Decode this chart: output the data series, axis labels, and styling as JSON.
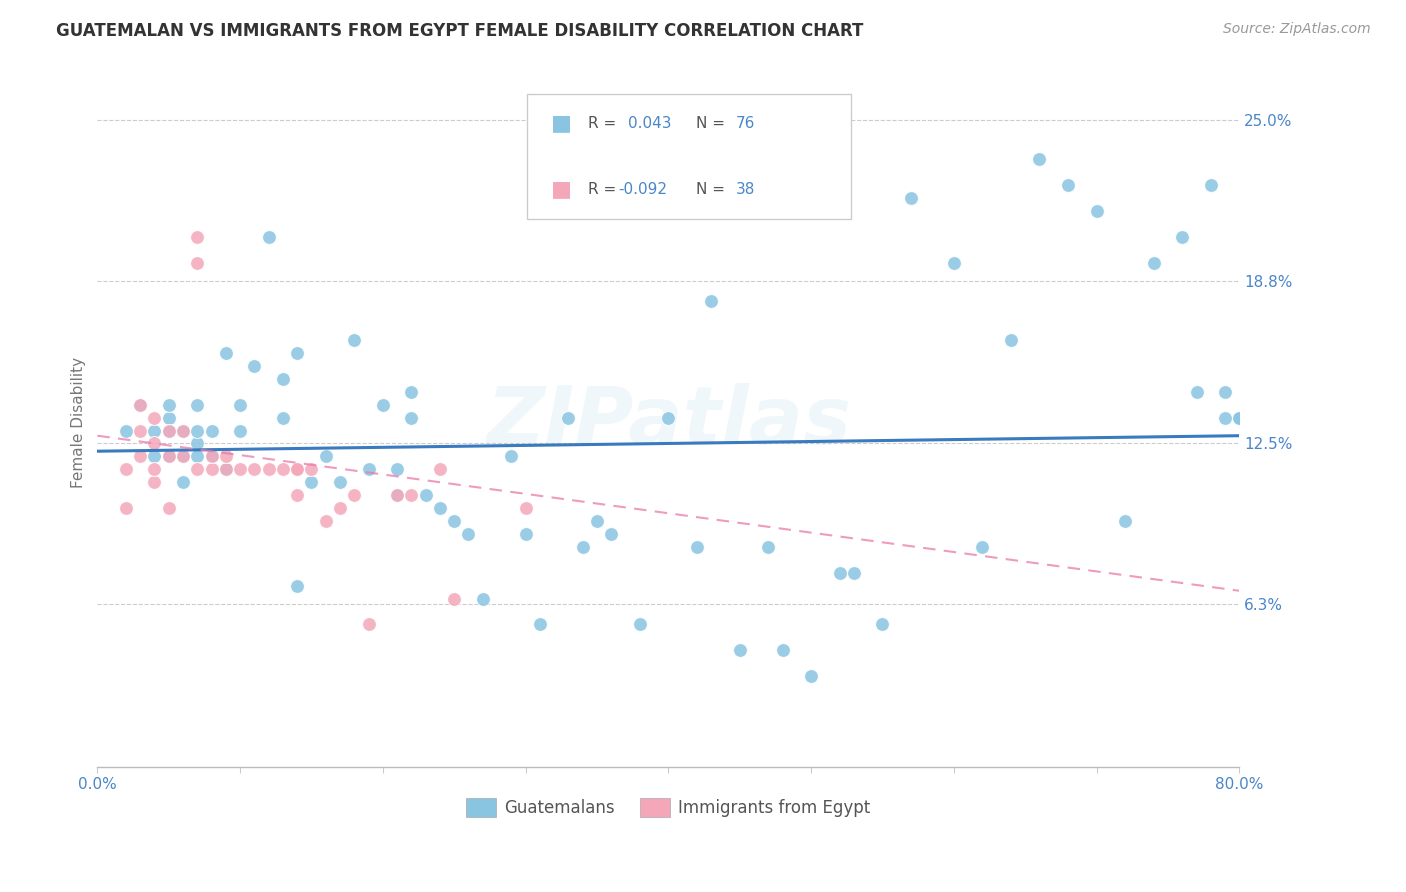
{
  "title": "GUATEMALAN VS IMMIGRANTS FROM EGYPT FEMALE DISABILITY CORRELATION CHART",
  "source": "Source: ZipAtlas.com",
  "ylabel": "Female Disability",
  "xlim": [
    0.0,
    0.8
  ],
  "ylim": [
    0.0,
    0.2666
  ],
  "xticks": [
    0.0,
    0.1,
    0.2,
    0.3,
    0.4,
    0.5,
    0.6,
    0.7,
    0.8
  ],
  "ytick_positions": [
    0.063,
    0.125,
    0.188,
    0.25
  ],
  "ytick_labels": [
    "6.3%",
    "12.5%",
    "18.8%",
    "25.0%"
  ],
  "blue_color": "#89c4e1",
  "pink_color": "#f4a7b9",
  "trend_blue": "#3a7abf",
  "trend_pink": "#e87aaa",
  "blue_scatter_x": [
    0.02,
    0.03,
    0.04,
    0.04,
    0.05,
    0.05,
    0.05,
    0.05,
    0.06,
    0.06,
    0.06,
    0.07,
    0.07,
    0.07,
    0.07,
    0.08,
    0.08,
    0.09,
    0.09,
    0.1,
    0.1,
    0.11,
    0.12,
    0.13,
    0.13,
    0.14,
    0.14,
    0.15,
    0.16,
    0.17,
    0.18,
    0.19,
    0.2,
    0.21,
    0.21,
    0.22,
    0.22,
    0.23,
    0.24,
    0.25,
    0.26,
    0.27,
    0.29,
    0.3,
    0.31,
    0.33,
    0.34,
    0.35,
    0.36,
    0.38,
    0.4,
    0.42,
    0.43,
    0.45,
    0.47,
    0.48,
    0.5,
    0.52,
    0.53,
    0.55,
    0.57,
    0.6,
    0.62,
    0.64,
    0.66,
    0.68,
    0.7,
    0.72,
    0.74,
    0.76,
    0.77,
    0.78,
    0.79,
    0.79,
    0.8,
    0.8
  ],
  "blue_scatter_y": [
    0.13,
    0.14,
    0.12,
    0.13,
    0.12,
    0.13,
    0.135,
    0.14,
    0.11,
    0.12,
    0.13,
    0.12,
    0.125,
    0.13,
    0.14,
    0.12,
    0.13,
    0.115,
    0.16,
    0.13,
    0.14,
    0.155,
    0.205,
    0.135,
    0.15,
    0.07,
    0.16,
    0.11,
    0.12,
    0.11,
    0.165,
    0.115,
    0.14,
    0.105,
    0.115,
    0.135,
    0.145,
    0.105,
    0.1,
    0.095,
    0.09,
    0.065,
    0.12,
    0.09,
    0.055,
    0.135,
    0.085,
    0.095,
    0.09,
    0.055,
    0.135,
    0.085,
    0.18,
    0.045,
    0.085,
    0.045,
    0.035,
    0.075,
    0.075,
    0.055,
    0.22,
    0.195,
    0.085,
    0.165,
    0.235,
    0.225,
    0.215,
    0.095,
    0.195,
    0.205,
    0.145,
    0.225,
    0.145,
    0.135,
    0.135,
    0.135
  ],
  "pink_scatter_x": [
    0.02,
    0.02,
    0.03,
    0.03,
    0.03,
    0.04,
    0.04,
    0.04,
    0.04,
    0.05,
    0.05,
    0.05,
    0.06,
    0.06,
    0.07,
    0.07,
    0.07,
    0.08,
    0.08,
    0.09,
    0.09,
    0.1,
    0.11,
    0.12,
    0.13,
    0.14,
    0.14,
    0.14,
    0.15,
    0.16,
    0.17,
    0.18,
    0.19,
    0.21,
    0.22,
    0.24,
    0.25,
    0.3
  ],
  "pink_scatter_y": [
    0.1,
    0.115,
    0.12,
    0.13,
    0.14,
    0.11,
    0.115,
    0.125,
    0.135,
    0.1,
    0.12,
    0.13,
    0.12,
    0.13,
    0.195,
    0.205,
    0.115,
    0.115,
    0.12,
    0.115,
    0.12,
    0.115,
    0.115,
    0.115,
    0.115,
    0.105,
    0.115,
    0.115,
    0.115,
    0.095,
    0.1,
    0.105,
    0.055,
    0.105,
    0.105,
    0.115,
    0.065,
    0.1
  ],
  "blue_trend_x_start": 0.0,
  "blue_trend_x_end": 0.8,
  "blue_trend_y_start": 0.122,
  "blue_trend_y_end": 0.128,
  "pink_trend_x_start": 0.0,
  "pink_trend_x_end": 0.8,
  "pink_trend_y_start": 0.128,
  "pink_trend_y_end": 0.068,
  "watermark": "ZIPatlas",
  "legend_blue_r": "R =  0.043",
  "legend_blue_n": "N = 76",
  "legend_pink_r": "R = -0.092",
  "legend_pink_n": "N = 38"
}
